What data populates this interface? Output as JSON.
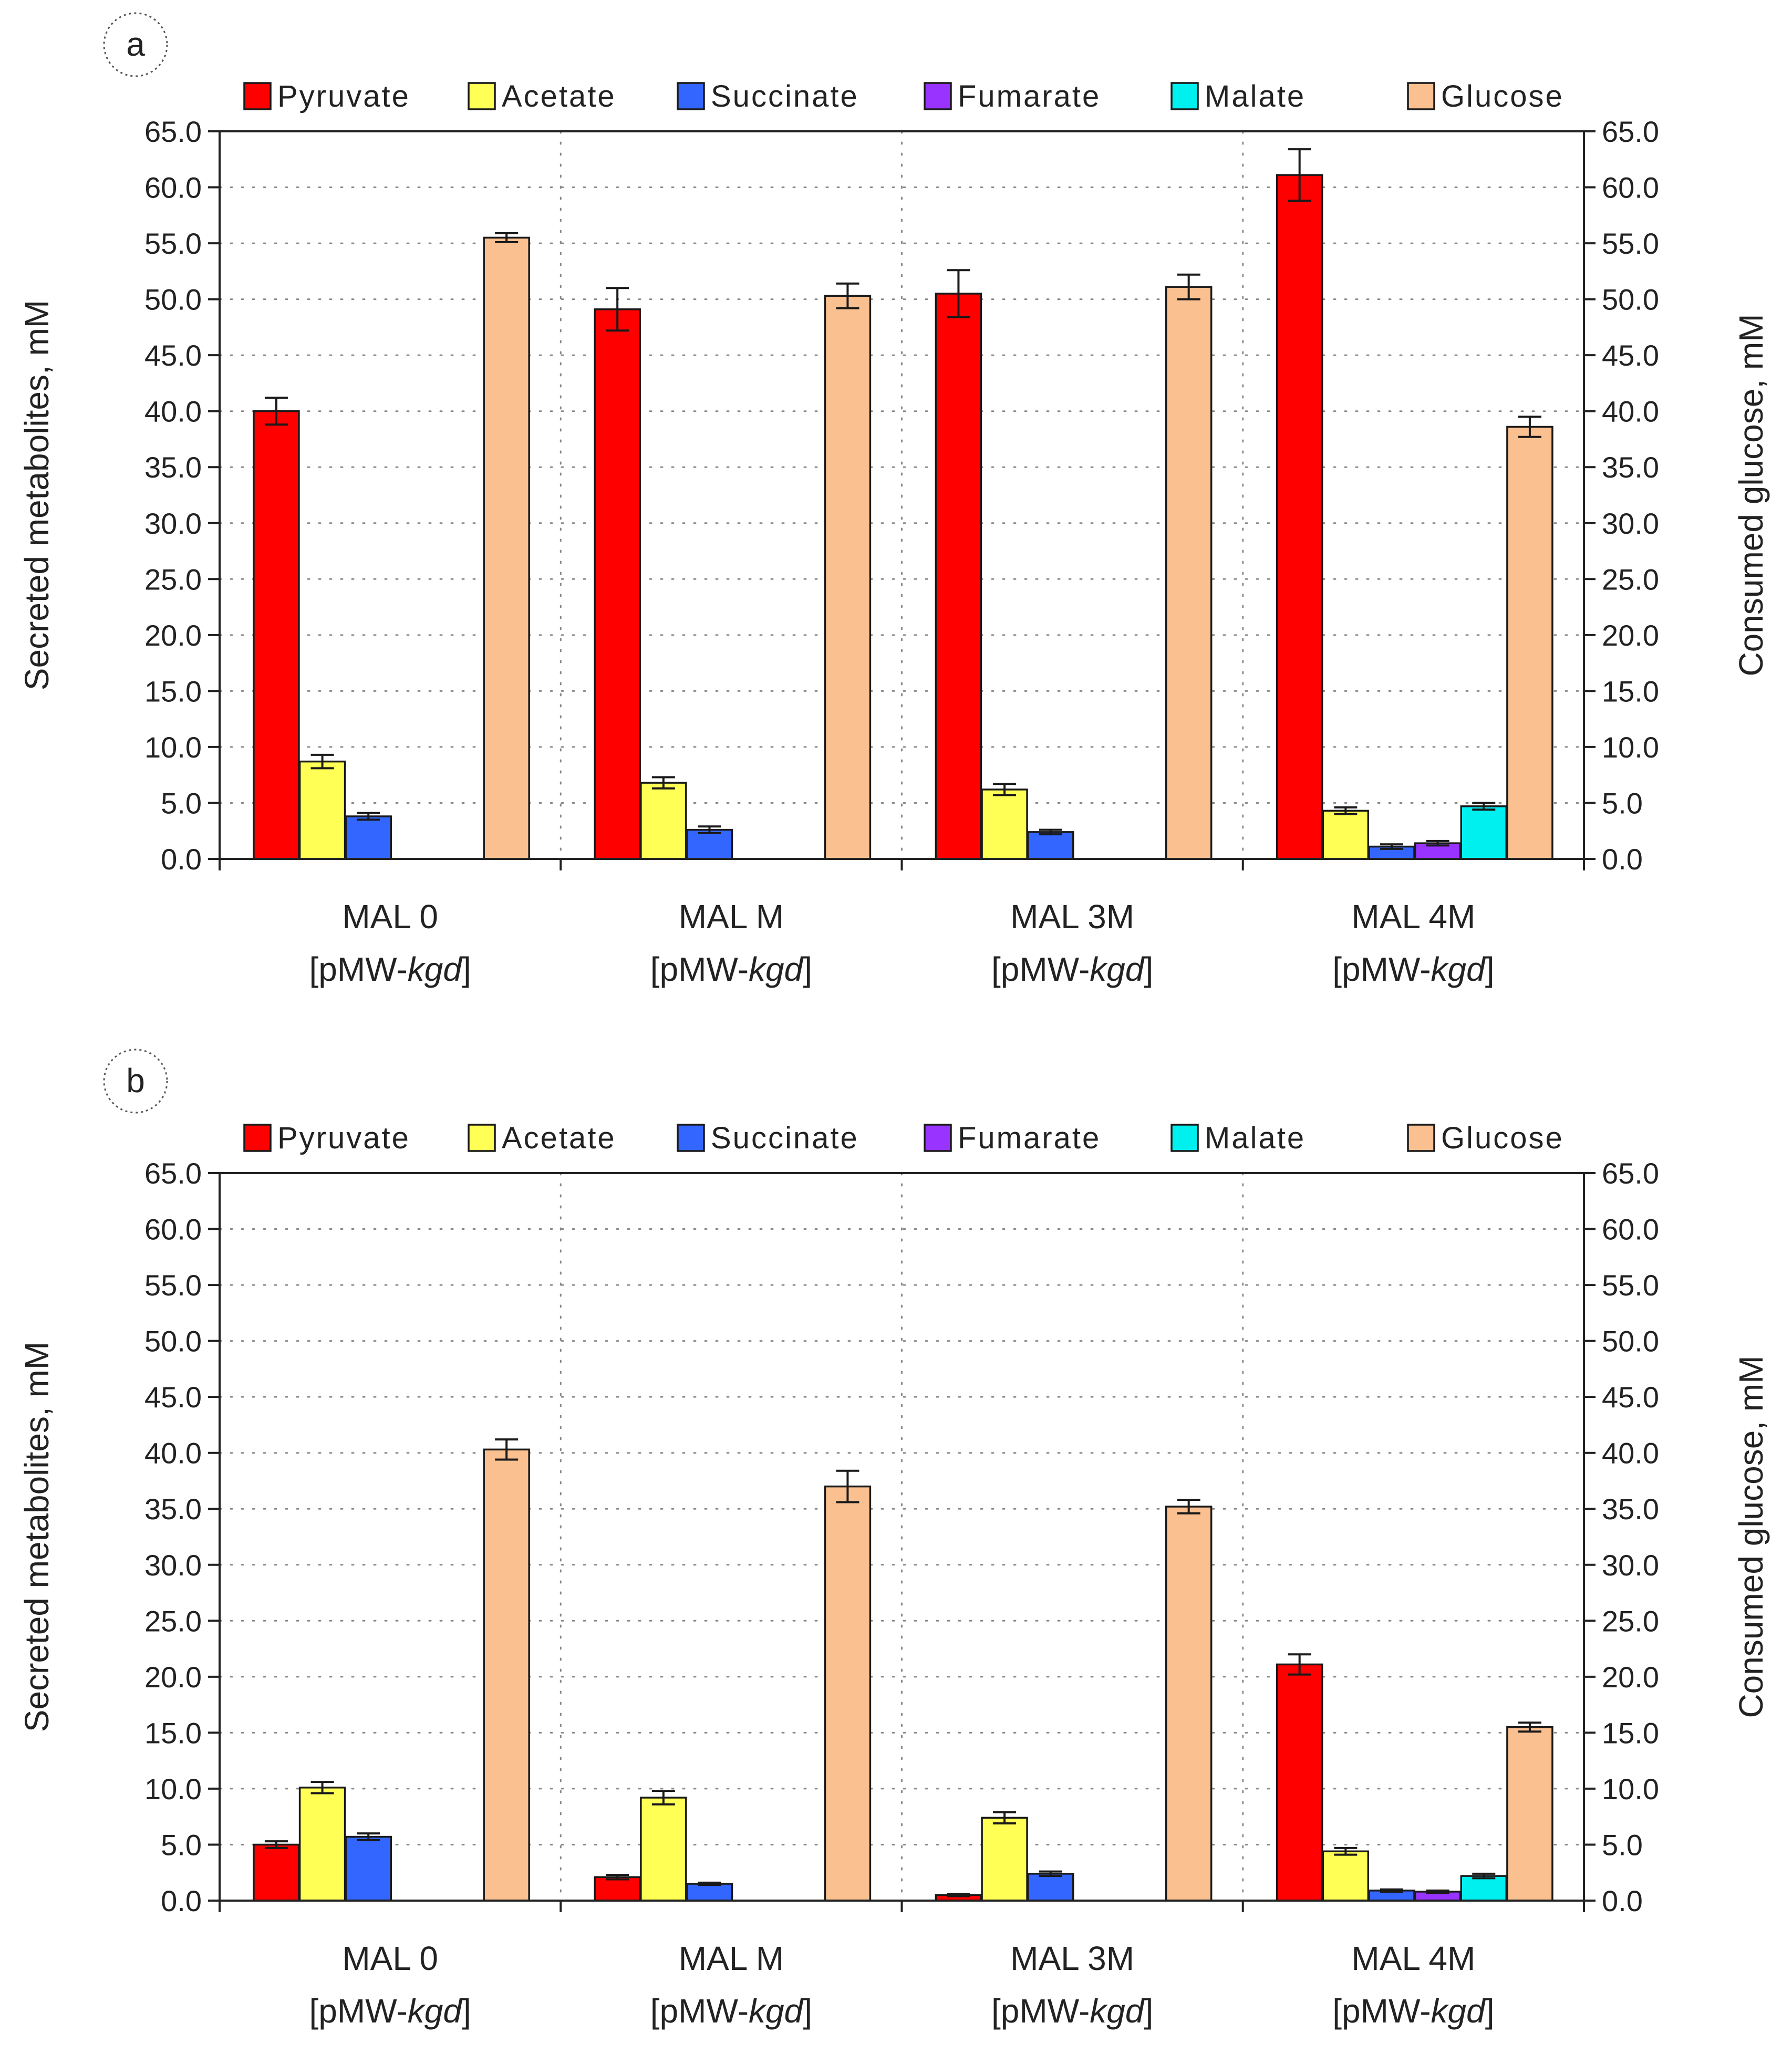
{
  "chart_data": [
    {
      "type": "bar",
      "panel_label": "a",
      "categories": [
        "MAL 0",
        "MAL M",
        "MAL 3M",
        "MAL 4M"
      ],
      "category_sublabel": {
        "prefix": "[pMW-",
        "italic": "kgd",
        "suffix": "]"
      },
      "series": [
        {
          "name": "Pyruvate",
          "color": "#ff0000",
          "values": [
            40.0,
            49.1,
            50.5,
            61.1
          ],
          "errors": [
            1.2,
            1.9,
            2.1,
            2.3
          ],
          "axis": "left"
        },
        {
          "name": "Acetate",
          "color": "#ffff55",
          "values": [
            8.7,
            6.8,
            6.2,
            4.3
          ],
          "errors": [
            0.6,
            0.5,
            0.5,
            0.3
          ],
          "axis": "left"
        },
        {
          "name": "Succinate",
          "color": "#3366ff",
          "values": [
            3.8,
            2.6,
            2.4,
            1.1
          ],
          "errors": [
            0.3,
            0.3,
            0.2,
            0.2
          ],
          "axis": "left"
        },
        {
          "name": "Fumarate",
          "color": "#9933ff",
          "values": [
            0.0,
            0.0,
            0.0,
            1.4
          ],
          "errors": [
            0.0,
            0.0,
            0.0,
            0.2
          ],
          "axis": "left"
        },
        {
          "name": "Malate",
          "color": "#00f0f0",
          "values": [
            0.0,
            0.0,
            0.0,
            4.7
          ],
          "errors": [
            0.0,
            0.0,
            0.0,
            0.3
          ],
          "axis": "left"
        },
        {
          "name": "Glucose",
          "color": "#fac090",
          "values": [
            55.5,
            50.3,
            51.1,
            38.6
          ],
          "errors": [
            0.4,
            1.1,
            1.1,
            0.9
          ],
          "axis": "right"
        }
      ],
      "ylabel": "Secreted metabolites, mM",
      "y2label": "Consumed glucose, mM",
      "ylim": [
        0,
        65
      ],
      "y2lim": [
        0,
        65
      ],
      "yticks": [
        "0.0",
        "5.0",
        "10.0",
        "15.0",
        "20.0",
        "25.0",
        "30.0",
        "35.0",
        "40.0",
        "45.0",
        "50.0",
        "55.0",
        "60.0",
        "65.0"
      ],
      "grid": true,
      "legend_position": "top"
    },
    {
      "type": "bar",
      "panel_label": "b",
      "categories": [
        "MAL 0",
        "MAL M",
        "MAL 3M",
        "MAL 4M"
      ],
      "category_sublabel": {
        "prefix": "[pMW-",
        "italic": "kgd",
        "suffix": "]"
      },
      "series": [
        {
          "name": "Pyruvate",
          "color": "#ff0000",
          "values": [
            5.0,
            2.1,
            0.5,
            21.1
          ],
          "errors": [
            0.3,
            0.2,
            0.1,
            0.9
          ],
          "axis": "left"
        },
        {
          "name": "Acetate",
          "color": "#ffff55",
          "values": [
            10.1,
            9.2,
            7.4,
            4.4
          ],
          "errors": [
            0.5,
            0.6,
            0.5,
            0.3
          ],
          "axis": "left"
        },
        {
          "name": "Succinate",
          "color": "#3366ff",
          "values": [
            5.7,
            1.5,
            2.4,
            0.9
          ],
          "errors": [
            0.3,
            0.1,
            0.2,
            0.1
          ],
          "axis": "left"
        },
        {
          "name": "Fumarate",
          "color": "#9933ff",
          "values": [
            0.0,
            0.0,
            0.0,
            0.8
          ],
          "errors": [
            0.0,
            0.0,
            0.0,
            0.1
          ],
          "axis": "left"
        },
        {
          "name": "Malate",
          "color": "#00f0f0",
          "values": [
            0.0,
            0.0,
            0.0,
            2.2
          ],
          "errors": [
            0.0,
            0.0,
            0.0,
            0.2
          ],
          "axis": "left"
        },
        {
          "name": "Glucose",
          "color": "#fac090",
          "values": [
            40.3,
            37.0,
            35.2,
            15.5
          ],
          "errors": [
            0.9,
            1.4,
            0.6,
            0.4
          ],
          "axis": "right"
        }
      ],
      "ylabel": "Secreted metabolites, mM",
      "y2label": "Consumed glucose, mM",
      "ylim": [
        0,
        65
      ],
      "y2lim": [
        0,
        65
      ],
      "yticks": [
        "0.0",
        "5.0",
        "10.0",
        "15.0",
        "20.0",
        "25.0",
        "30.0",
        "35.0",
        "40.0",
        "45.0",
        "50.0",
        "55.0",
        "60.0",
        "65.0"
      ],
      "grid": true,
      "legend_position": "top"
    }
  ]
}
